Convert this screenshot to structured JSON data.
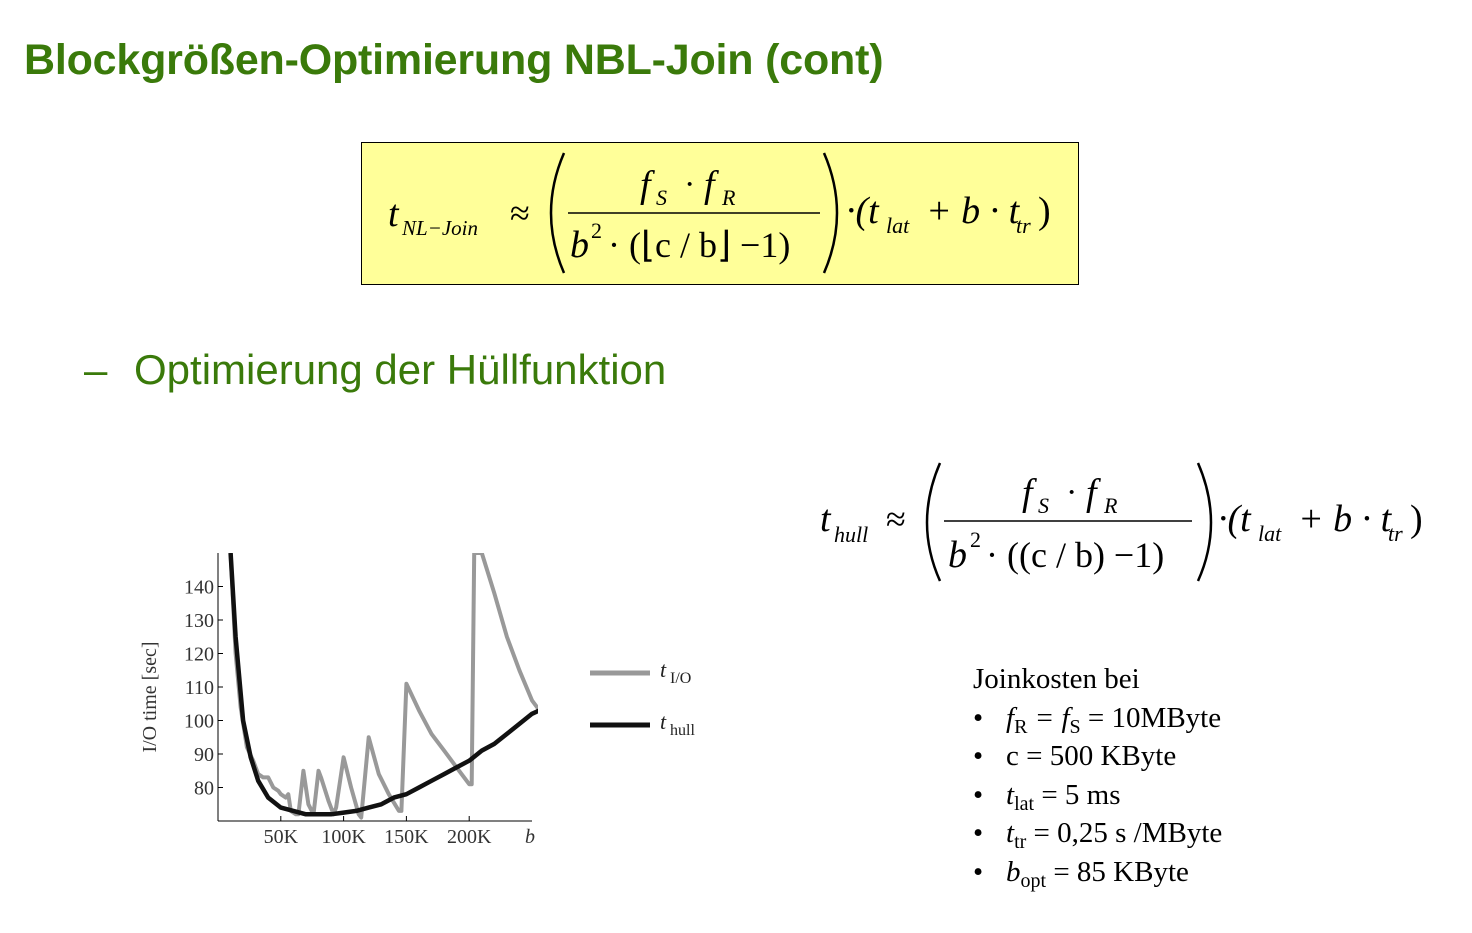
{
  "title": "Blockgrößen-Optimierung NBL-Join (cont)",
  "bullet": {
    "marker": "–",
    "text": "Optimierung der Hüllfunktion"
  },
  "formula_main": {
    "lhs_t": "t",
    "lhs_sub": "NL−Join",
    "approx": "≈",
    "num_f1": "f",
    "num_f1_sub": "S",
    "num_dot": "·",
    "num_f2": "f",
    "num_f2_sub": "R",
    "den_text": "b",
    "den_exp": "2",
    "den_rest": "· (⌊c / b⌋ −1)",
    "rhs": "·(t",
    "rhs_lat_sub": "lat",
    "rhs_mid": "+ b · t",
    "rhs_tr_sub": "tr",
    "rhs_close": ")"
  },
  "formula_hull": {
    "lhs_t": "t",
    "lhs_sub": "hull",
    "approx": "≈",
    "num_f1": "f",
    "num_f1_sub": "S",
    "num_dot": "·",
    "num_f2": "f",
    "num_f2_sub": "R",
    "den_text": "b",
    "den_exp": "2",
    "den_rest": "· ((c / b) −1)",
    "rhs": "·(t",
    "rhs_lat_sub": "lat",
    "rhs_mid": "+ b · t",
    "rhs_tr_sub": "tr",
    "rhs_close": ")"
  },
  "chart_data": {
    "type": "line",
    "ylabel": "I/O time [sec]",
    "xlabel": "b",
    "x_ticks": [
      "50K",
      "100K",
      "150K",
      "200K"
    ],
    "x_tick_values": [
      50,
      100,
      150,
      200
    ],
    "y_ticks": [
      "80",
      "90",
      "100",
      "110",
      "120",
      "130",
      "140"
    ],
    "y_tick_values": [
      80,
      90,
      100,
      110,
      120,
      130,
      140
    ],
    "xlim": [
      0,
      250
    ],
    "ylim": [
      70,
      150
    ],
    "legend_position": "right",
    "series": [
      {
        "name": "t_I/O",
        "legend_main": "t",
        "legend_sub": "I/O",
        "color": "#999999",
        "points": [
          [
            10,
            150
          ],
          [
            14,
            120
          ],
          [
            18,
            104
          ],
          [
            23,
            92
          ],
          [
            28,
            88
          ],
          [
            32,
            84
          ],
          [
            36,
            83
          ],
          [
            40,
            83
          ],
          [
            44,
            80
          ],
          [
            48,
            79
          ],
          [
            50,
            78
          ],
          [
            54,
            77
          ],
          [
            56,
            78
          ],
          [
            58,
            73
          ],
          [
            62,
            72
          ],
          [
            64,
            72
          ],
          [
            68,
            85
          ],
          [
            72,
            75
          ],
          [
            76,
            72
          ],
          [
            80,
            85
          ],
          [
            82,
            83
          ],
          [
            88,
            76
          ],
          [
            92,
            72
          ],
          [
            94,
            74
          ],
          [
            100,
            89
          ],
          [
            106,
            80
          ],
          [
            112,
            72
          ],
          [
            114,
            71
          ],
          [
            120,
            95
          ],
          [
            128,
            84
          ],
          [
            136,
            78
          ],
          [
            144,
            73
          ],
          [
            146,
            73
          ],
          [
            150,
            111
          ],
          [
            160,
            103
          ],
          [
            170,
            96
          ],
          [
            180,
            91
          ],
          [
            190,
            86
          ],
          [
            200,
            81
          ],
          [
            202,
            81
          ],
          [
            204,
            150
          ],
          [
            210,
            150
          ],
          [
            220,
            138
          ],
          [
            230,
            125
          ],
          [
            240,
            115
          ],
          [
            250,
            106
          ],
          [
            256,
            103
          ]
        ]
      },
      {
        "name": "t_hull",
        "legend_main": "t",
        "legend_sub": "hull",
        "color": "#111111",
        "points": [
          [
            10,
            150
          ],
          [
            14,
            125
          ],
          [
            20,
            100
          ],
          [
            26,
            89
          ],
          [
            32,
            82
          ],
          [
            40,
            77
          ],
          [
            50,
            74
          ],
          [
            60,
            73
          ],
          [
            70,
            72
          ],
          [
            80,
            72
          ],
          [
            90,
            72
          ],
          [
            100,
            72.5
          ],
          [
            110,
            73
          ],
          [
            120,
            74
          ],
          [
            130,
            75
          ],
          [
            140,
            77
          ],
          [
            150,
            78
          ],
          [
            160,
            80
          ],
          [
            170,
            82
          ],
          [
            180,
            84
          ],
          [
            190,
            86
          ],
          [
            200,
            88
          ],
          [
            210,
            91
          ],
          [
            220,
            93
          ],
          [
            230,
            96
          ],
          [
            240,
            99
          ],
          [
            250,
            102
          ],
          [
            256,
            103
          ]
        ]
      }
    ]
  },
  "info": {
    "header": "Joinkosten bei",
    "items": [
      {
        "pre": "f",
        "pre_sub": "R",
        "mid": " = f",
        "mid_sub": "S",
        "post": " = 10MByte"
      },
      {
        "pre": "",
        "pre_sub": "",
        "mid": "",
        "mid_sub": "",
        "post": "c = 500 KByte"
      },
      {
        "pre": "t",
        "pre_sub": "lat",
        "mid": "",
        "mid_sub": "",
        "post": " = 5 ms"
      },
      {
        "pre": "t",
        "pre_sub": "tr",
        "mid": "",
        "mid_sub": "",
        "post": " = 0,25 s /MByte"
      },
      {
        "pre": "b",
        "pre_sub": "opt",
        "mid": "",
        "mid_sub": "",
        "post": " = 85 KByte"
      }
    ]
  }
}
